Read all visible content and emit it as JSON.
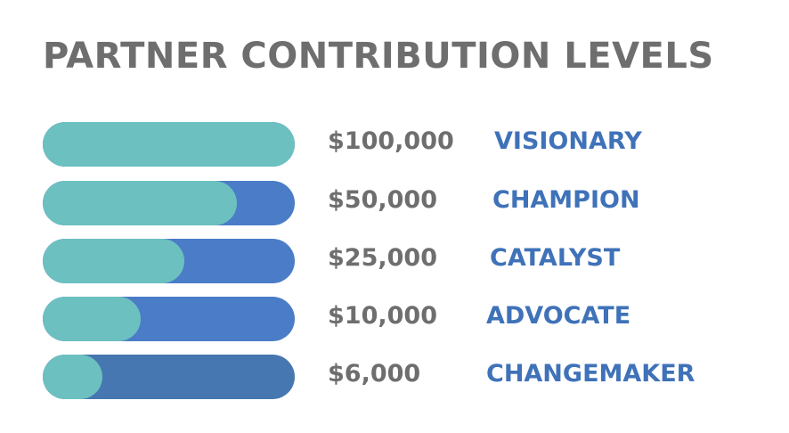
{
  "title": "PARTNER CONTRIBUTION LEVELS",
  "levels": [
    {
      "amount": "$100,000",
      "name": "VISIONARY"
    },
    {
      "amount": "$50,000",
      "name": "CHAMPION"
    },
    {
      "amount": "$25,000",
      "name": "CATALYST"
    },
    {
      "amount": "$10,000",
      "name": "ADVOCATE"
    },
    {
      "amount": "$6,000",
      "name": "CHANGEMAKER"
    }
  ]
}
